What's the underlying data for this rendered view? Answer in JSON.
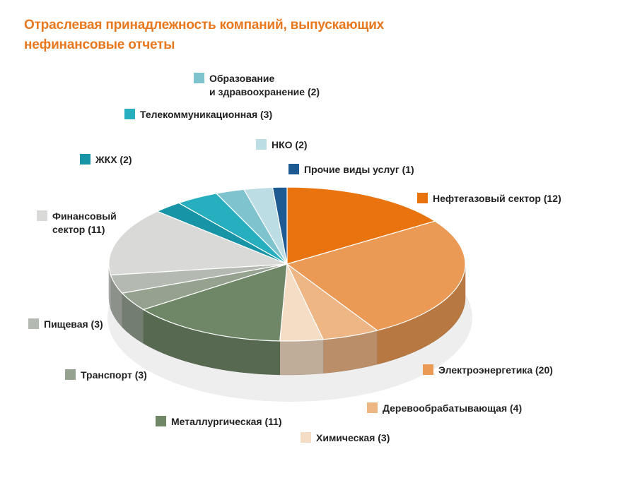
{
  "title_lines": [
    "Отраслевая принадлежность компаний, выпускающих",
    "нефинансовые отчеты"
  ],
  "chart_data": {
    "type": "pie",
    "title": "Отраслевая принадлежность компаний, выпускающих нефинансовые отчеты",
    "style": "3d",
    "slices": [
      {
        "label": "Нефтегазовый сектор (12)",
        "label_lines": [
          "Нефтегазовый сектор (12)"
        ],
        "value": 12,
        "color": "#e8730f"
      },
      {
        "label": "Электроэнергетика (20)",
        "label_lines": [
          "Электроэнергетика (20)"
        ],
        "value": 20,
        "color": "#ea9a55"
      },
      {
        "label": "Деревообрабатывающая (4)",
        "label_lines": [
          "Деревообрабатывающая (4)"
        ],
        "value": 4,
        "color": "#efb685"
      },
      {
        "label": "Химическая (3)",
        "label_lines": [
          "Химическая (3)"
        ],
        "value": 3,
        "color": "#f5dcc4"
      },
      {
        "label": "Металлургическая (11)",
        "label_lines": [
          "Металлургическая (11)"
        ],
        "value": 11,
        "color": "#6f8767"
      },
      {
        "label": "Транспорт (3)",
        "label_lines": [
          "Транспорт (3)"
        ],
        "value": 3,
        "color": "#95a28f"
      },
      {
        "label": "Пищевая (3)",
        "label_lines": [
          "Пищевая (3)"
        ],
        "value": 3,
        "color": "#b4bab1"
      },
      {
        "label": "Финансовый сектор (11)",
        "label_lines": [
          "Финансовый",
          "сектор (11)"
        ],
        "value": 11,
        "color": "#d9dad7"
      },
      {
        "label": "ЖКХ (2)",
        "label_lines": [
          "ЖКХ (2)"
        ],
        "value": 2,
        "color": "#1794a6"
      },
      {
        "label": "Телекоммуникационная (3)",
        "label_lines": [
          "Телекоммуникационная (3)"
        ],
        "value": 3,
        "color": "#27aebf"
      },
      {
        "label": "Образование и здравоохранение (2)",
        "label_lines": [
          "Образование",
          "и здравоохранение (2)"
        ],
        "value": 2,
        "color": "#7fc3cf"
      },
      {
        "label": "НКО (2)",
        "label_lines": [
          "НКО (2)"
        ],
        "value": 2,
        "color": "#bddde5"
      },
      {
        "label": "Прочие виды услуг (1)",
        "label_lines": [
          "Прочие виды услуг (1)"
        ],
        "value": 1,
        "color": "#1d5a91"
      }
    ],
    "legend_placement": "around"
  }
}
